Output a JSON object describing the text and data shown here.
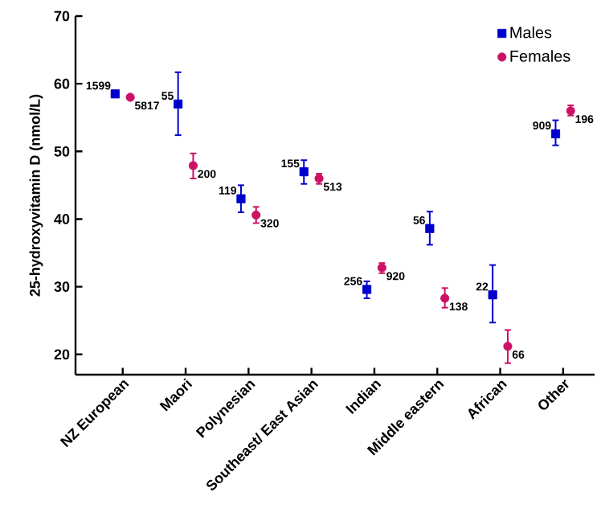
{
  "chart_data": {
    "type": "scatter",
    "ylabel": "25-hydroxyvitamin D (nmol/L)",
    "categories": [
      "NZ European",
      "Maori",
      "Polynesian",
      "Southeast/ East Asian",
      "Indian",
      "Middle eastern",
      "African",
      "Other"
    ],
    "series": [
      {
        "name": "Males",
        "color": "#0000cc",
        "marker": "square",
        "values": [
          58.5,
          57.0,
          43.0,
          47.0,
          29.6,
          38.6,
          28.8,
          52.6
        ],
        "errors": [
          null,
          [
            52.4,
            61.7
          ],
          [
            41.0,
            45.0
          ],
          [
            45.2,
            48.7
          ],
          [
            28.3,
            30.8
          ],
          [
            36.2,
            41.1
          ],
          [
            24.7,
            33.2
          ],
          [
            50.9,
            54.6
          ]
        ]
      },
      {
        "name": "Females",
        "color": "#cc1166",
        "marker": "circle",
        "values": [
          58.0,
          47.9,
          40.6,
          46.0,
          32.8,
          28.3,
          21.2,
          56.0
        ],
        "errors": [
          null,
          [
            46.0,
            49.7
          ],
          [
            39.4,
            41.8
          ],
          [
            45.2,
            46.7
          ],
          [
            32.0,
            33.5
          ],
          [
            26.9,
            29.8
          ],
          [
            18.7,
            23.6
          ],
          [
            55.3,
            56.8
          ]
        ]
      }
    ],
    "annotations": [
      {
        "text": "1599",
        "x": "NZ European",
        "y": 58.5
      },
      {
        "text": "55",
        "x": "Maori",
        "y": 57.0
      },
      {
        "text": "119",
        "x": "Polynesian",
        "y": 43.0
      },
      {
        "text": "155",
        "x": "Southeast/ East Asian",
        "y": 47.0
      },
      {
        "text": "256",
        "x": "Indian",
        "y": 29.6
      },
      {
        "text": "56",
        "x": "Middle eastern",
        "y": 38.6
      },
      {
        "text": "22",
        "x": "African",
        "y": 28.8
      },
      {
        "text": "909",
        "x": "Other",
        "y": 52.6
      },
      {
        "text": "5817",
        "x": "NZ European",
        "y": 58.0
      },
      {
        "text": "200",
        "x": "Maori",
        "y": 47.9
      },
      {
        "text": "320",
        "x": "Polynesian",
        "y": 40.6
      },
      {
        "text": "513",
        "x": "Southeast/ East Asian",
        "y": 46.0
      },
      {
        "text": "920",
        "x": "Indian",
        "y": 32.8
      },
      {
        "text": "138",
        "x": "Middle eastern",
        "y": 28.3
      },
      {
        "text": "66",
        "x": "African",
        "y": 21.2
      },
      {
        "text": "196",
        "x": "Other",
        "y": 56.0
      }
    ],
    "ylim": [
      17,
      70
    ],
    "yticks": [
      20,
      30,
      40,
      50,
      60,
      70
    ],
    "grid": false,
    "legend": "top right"
  }
}
